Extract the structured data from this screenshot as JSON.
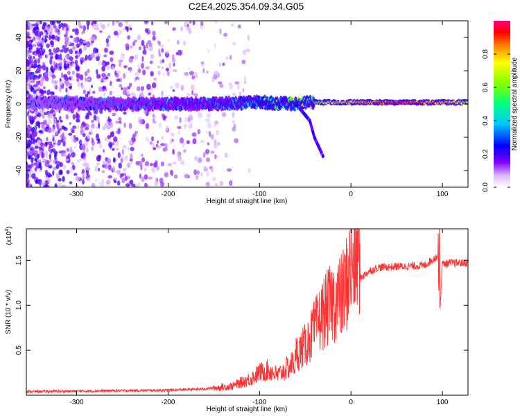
{
  "page_title": "C2E4.2025.354.09.34.G05",
  "chart_data": [
    {
      "type": "heatmap",
      "xlabel": "Height of straight line (km)",
      "ylabel": "Frequency (Hz)",
      "xlim": [
        -355,
        128
      ],
      "ylim": [
        -50,
        50
      ],
      "x_ticks": [
        -300,
        -200,
        -100,
        0,
        100
      ],
      "x_tick_labels": [
        "-300",
        "-200",
        "-100",
        "0",
        "100"
      ],
      "y_ticks": [
        -40,
        -20,
        0,
        20,
        40
      ],
      "y_tick_labels": [
        "-40",
        "-20",
        "0",
        "20",
        "40"
      ],
      "grid": false,
      "colorbar": {
        "label": "Normalized spectral amplitude",
        "range": [
          0,
          1
        ],
        "ticks": [
          0.0,
          0.2,
          0.4,
          0.6,
          0.8
        ],
        "tick_labels": [
          "0.0",
          "0.2",
          "0.4",
          "0.6",
          "0.8"
        ],
        "colormap": "rainbow"
      },
      "ridge": {
        "description_points_x": [
          -355,
          -250,
          -150,
          -100,
          -60,
          -40,
          -25,
          0,
          50,
          100,
          128
        ],
        "center_hz": [
          1,
          0,
          0,
          1,
          0,
          1,
          1,
          1,
          1,
          1,
          1
        ],
        "amplitude": [
          0.25,
          0.3,
          0.35,
          0.45,
          0.55,
          0.6,
          0.75,
          0.8,
          0.95,
          0.85,
          0.7
        ]
      },
      "branch_segment": {
        "x": [
          -60,
          -45,
          -40,
          -30
        ],
        "y": [
          0,
          -10,
          -20,
          -32
        ]
      },
      "noise_region_x": [
        -355,
        -150
      ]
    },
    {
      "type": "line",
      "xlabel": "Height of straight line (km)",
      "ylabel": "SNR (10 * v/v)",
      "y_multiplier_label": "(x10",
      "y_multiplier_exp": "4",
      "xlim": [
        -355,
        128
      ],
      "ylim": [
        0,
        18500
      ],
      "x_ticks": [
        -300,
        -200,
        -100,
        0,
        100
      ],
      "x_tick_labels": [
        "-300",
        "-200",
        "-100",
        "0",
        "100"
      ],
      "y_ticks": [
        5000,
        10000,
        15000
      ],
      "y_tick_labels": [
        "0.5",
        "1.0",
        "1.5"
      ],
      "grid": false,
      "series": [
        {
          "color": "#ff3333",
          "x": [
            -355,
            -300,
            -250,
            -200,
            -160,
            -130,
            -110,
            -100,
            -90,
            -80,
            -70,
            -60,
            -50,
            -40,
            -30,
            -20,
            -10,
            0,
            10,
            20,
            30,
            50,
            80,
            95,
            97,
            100,
            110,
            128
          ],
          "y": [
            400,
            450,
            500,
            550,
            700,
            1000,
            1800,
            2500,
            2800,
            2200,
            3000,
            3800,
            4500,
            6000,
            7500,
            8500,
            9000,
            11500,
            13000,
            13800,
            14200,
            14300,
            14400,
            15500,
            9000,
            14600,
            14700,
            14700
          ]
        }
      ]
    }
  ]
}
